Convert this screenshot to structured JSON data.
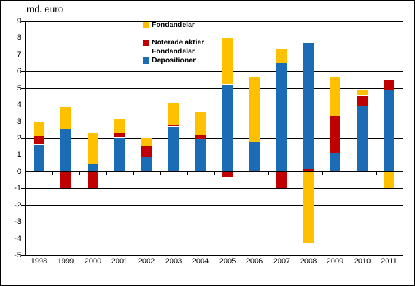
{
  "chart_data": {
    "type": "bar",
    "stacked": true,
    "title": "md. euro",
    "xlabel": "",
    "ylabel": "md. euro",
    "ylim": [
      -5,
      9
    ],
    "ytick_step": 1,
    "grid": "horizontal",
    "legend_position": "top-center",
    "categories": [
      "1998",
      "1999",
      "2000",
      "2001",
      "2002",
      "2003",
      "2004",
      "2005",
      "2006",
      "2007",
      "2008",
      "2009",
      "2010",
      "2011"
    ],
    "series": [
      {
        "name": "Depositioner",
        "color": "#1B6CB5",
        "values": [
          1.6,
          2.6,
          0.5,
          2.05,
          0.9,
          2.7,
          1.95,
          5.2,
          1.8,
          6.5,
          7.55,
          1.1,
          3.95,
          4.9
        ]
      },
      {
        "name": "Noterade aktier",
        "color": "#C00000",
        "values": [
          0.55,
          -1.0,
          -1.0,
          0.3,
          0.65,
          0.1,
          0.25,
          -0.3,
          0.0,
          -1.0,
          0.15,
          2.25,
          0.6,
          0.6
        ]
      },
      {
        "name": "Fondandelar",
        "color": "#FFC000",
        "values": [
          0.85,
          1.25,
          1.8,
          0.8,
          0.45,
          1.3,
          1.4,
          2.8,
          3.85,
          0.85,
          -4.25,
          2.3,
          0.3,
          -1.0
        ]
      }
    ],
    "stack_order": [
      "Depositioner",
      "Noterade aktier",
      "Fondandelar"
    ],
    "stack_order_overrides": {
      "2008": [
        "Noterade aktier",
        "Depositioner",
        "Fondandelar"
      ]
    }
  },
  "legend": [
    {
      "label": "Fondandelar",
      "color": "#FFC000"
    },
    {
      "label": "Noterade aktier",
      "label_line2": "Fondandelar",
      "color": "#C00000"
    },
    {
      "label": "Depositioner",
      "color": "#1B6CB5"
    }
  ]
}
